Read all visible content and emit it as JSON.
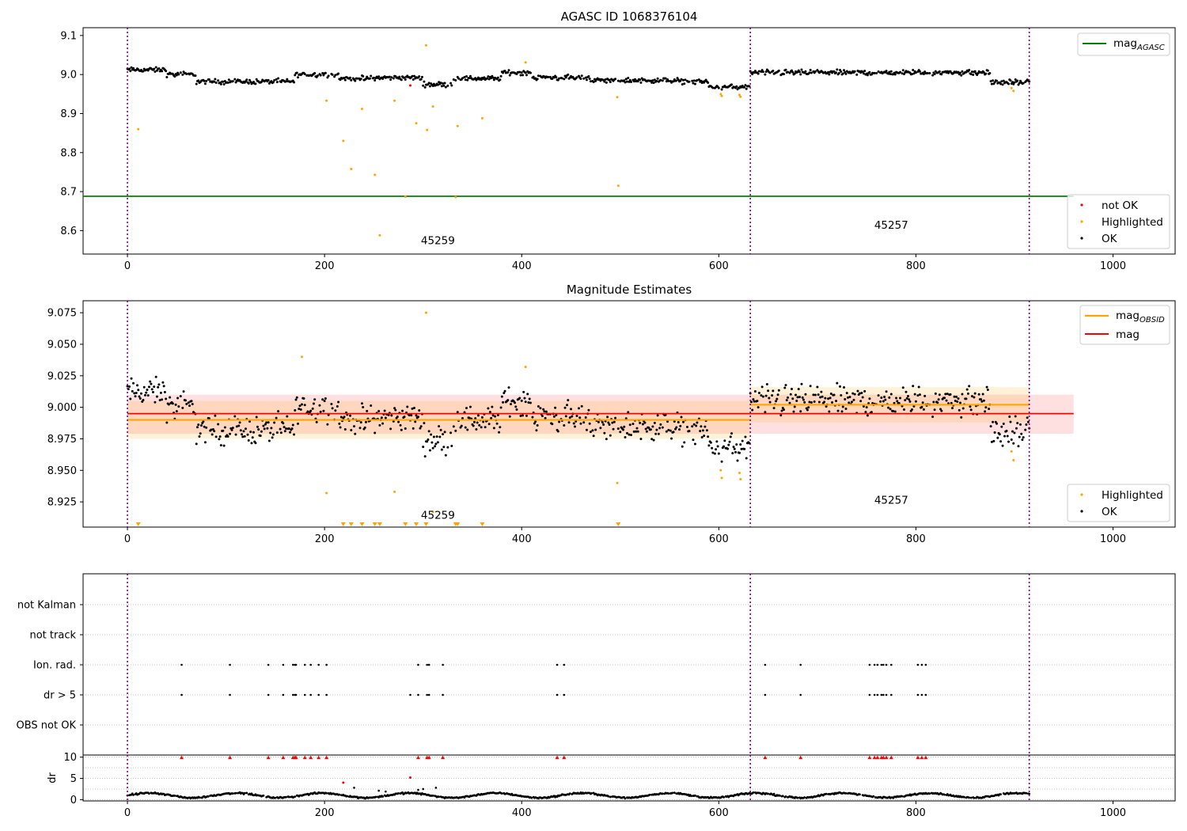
{
  "colors": {
    "ok": "#000000",
    "highlighted": "#ffa500",
    "not_ok": "#ff0000",
    "mag_agasc": "#008000",
    "mag": "#ff0000",
    "mag_obsid": "#ffa500",
    "obs_divider": "#800080",
    "grid": "#b0b0b0"
  },
  "chart_data": [
    {
      "type": "scatter",
      "title": "AGASC ID 1068376104",
      "xlabel": "",
      "ylabel": "",
      "xlim": [
        -45,
        1063
      ],
      "ylim": [
        8.54,
        9.12
      ],
      "xticks": [
        "0",
        "200",
        "400",
        "600",
        "800",
        "1000"
      ],
      "yticks": [
        "8.6",
        "8.7",
        "8.8",
        "8.9",
        "9.0",
        "9.1"
      ],
      "grid": false,
      "obs_boundaries": [
        0,
        632,
        915
      ],
      "obs_labels": [
        {
          "text": "45259",
          "x": 315,
          "y": 8.565
        },
        {
          "text": "45257",
          "x": 775,
          "y": 8.605
        }
      ],
      "lines": [
        {
          "name": "mag_AGASC",
          "name_base": "mag",
          "name_sub": "AGASC",
          "y": 8.688,
          "x_range": [
            -45,
            960
          ]
        }
      ],
      "legend_lines": [
        "mag_AGASC"
      ],
      "legend_points": [
        "not OK",
        "Highlighted",
        "OK"
      ],
      "legend_placement": "top-right (lines), lower-right (points)",
      "series": [
        {
          "name": "OK",
          "description": "dense black points, approx. 8.96 to 9.04, mean ~8.99 in obs 45259 and ~9.005 in obs 45257"
        },
        {
          "name": "Highlighted",
          "points": [
            [
              11,
              8.86
            ],
            [
              202,
              8.933
            ],
            [
              219,
              8.83
            ],
            [
              227,
              8.758
            ],
            [
              238,
              8.912
            ],
            [
              251,
              8.743
            ],
            [
              256,
              8.588
            ],
            [
              271,
              8.933
            ],
            [
              282,
              8.687
            ],
            [
              293,
              8.875
            ],
            [
              303,
              9.075
            ],
            [
              304,
              8.858
            ],
            [
              310,
              8.918
            ],
            [
              333,
              8.686
            ],
            [
              335,
              8.868
            ],
            [
              360,
              8.888
            ],
            [
              404,
              9.031
            ],
            [
              497,
              8.942
            ],
            [
              498,
              8.715
            ],
            [
              602,
              8.95
            ],
            [
              603,
              8.945
            ],
            [
              621,
              8.948
            ],
            [
              622,
              8.943
            ],
            [
              897,
              8.965
            ],
            [
              899,
              8.958
            ]
          ]
        },
        {
          "name": "not OK",
          "points": [
            [
              287,
              8.972
            ]
          ]
        }
      ]
    },
    {
      "type": "scatter",
      "title": "Magnitude Estimates",
      "xlabel": "",
      "ylabel": "",
      "xlim": [
        -45,
        1063
      ],
      "ylim": [
        8.905,
        9.0845
      ],
      "xticks": [
        "0",
        "200",
        "400",
        "600",
        "800",
        "1000"
      ],
      "yticks": [
        "8.925",
        "8.950",
        "8.975",
        "9.000",
        "9.025",
        "9.050",
        "9.075"
      ],
      "grid": false,
      "obs_boundaries": [
        0,
        632,
        915
      ],
      "obs_labels": [
        {
          "text": "45259",
          "x": 315,
          "y": 8.9115
        },
        {
          "text": "45257",
          "x": 775,
          "y": 8.9235
        }
      ],
      "lines": [
        {
          "name": "mag_OBSID",
          "name_base": "mag",
          "name_sub": "OBSID",
          "segments": [
            {
              "x_range": [
                0,
                632
              ],
              "y": 8.99,
              "band": [
                8.975,
                9.005
              ]
            },
            {
              "x_range": [
                632,
                915
              ],
              "y": 9.002,
              "band": [
                8.988,
                9.016
              ]
            }
          ]
        },
        {
          "name": "mag",
          "y": 8.995,
          "x_range": [
            0,
            960
          ],
          "band": [
            8.979,
            9.01
          ]
        }
      ],
      "legend_lines": [
        "mag_OBSID",
        "mag"
      ],
      "legend_points": [
        "Highlighted",
        "OK"
      ],
      "legend_placement": "top-right (lines), lower-right (points)",
      "series": [
        {
          "name": "OK",
          "description": "dense black points, approx. 8.955 to 9.035"
        },
        {
          "name": "Highlighted",
          "points": [
            [
              177,
              9.04
            ],
            [
              202,
              8.932
            ],
            [
              271,
              8.933
            ],
            [
              303,
              9.075
            ],
            [
              310,
              8.917
            ],
            [
              404,
              9.032
            ],
            [
              497,
              8.94
            ],
            [
              602,
              8.95
            ],
            [
              603,
              8.944
            ],
            [
              621,
              8.948
            ],
            [
              622,
              8.943
            ],
            [
              897,
              8.965
            ],
            [
              899,
              8.958
            ]
          ]
        },
        {
          "name": "Highlighted (below axis)",
          "x": [
            11,
            219,
            227,
            238,
            251,
            256,
            282,
            293,
            303,
            333,
            335,
            360,
            498
          ]
        }
      ]
    },
    {
      "type": "scatter",
      "title": "",
      "xlabel": "",
      "ylabel": "",
      "xlim": [
        -45,
        1063
      ],
      "categories": [
        "not Kalman",
        "not track",
        "Ion. rad.",
        "dr > 5",
        "OBS not OK"
      ],
      "grid": true,
      "obs_boundaries": [
        0,
        632,
        915
      ],
      "flag_x": {
        "Ion. rad.": [
          55,
          104,
          143,
          158,
          168,
          170,
          171,
          180,
          186,
          194,
          202,
          295,
          304,
          306,
          320,
          436,
          443,
          647,
          683,
          753,
          758,
          761,
          765,
          767,
          770,
          775,
          802,
          806,
          810
        ],
        "dr > 5": [
          55,
          104,
          143,
          158,
          168,
          170,
          171,
          180,
          186,
          194,
          202,
          287,
          295,
          304,
          306,
          320,
          436,
          443,
          647,
          683,
          753,
          758,
          761,
          765,
          767,
          770,
          775,
          802,
          806,
          810
        ],
        "not Kalman": [],
        "not track": [],
        "OBS not OK": []
      }
    },
    {
      "type": "scatter",
      "title": "",
      "xlabel": "",
      "ylabel": "dr",
      "xlim": [
        -45,
        1063
      ],
      "ylim": [
        -0.3,
        10.5
      ],
      "xticks": [
        "0",
        "200",
        "400",
        "600",
        "800",
        "1000"
      ],
      "yticks": [
        "0",
        "5",
        "10"
      ],
      "grid": true,
      "series": [
        {
          "name": "dr",
          "description": "black points mostly between 0 and 2"
        },
        {
          "name": "dr (red, above limit, plotted at 10)",
          "x": [
            55,
            104,
            143,
            158,
            168,
            170,
            171,
            180,
            186,
            194,
            202,
            295,
            304,
            306,
            320,
            436,
            443,
            647,
            683,
            753,
            758,
            761,
            765,
            767,
            770,
            775,
            802,
            806,
            810
          ]
        },
        {
          "name": "dr (red)",
          "points": [
            [
              219,
              4.0
            ],
            [
              287,
              5.2
            ]
          ]
        }
      ]
    }
  ]
}
